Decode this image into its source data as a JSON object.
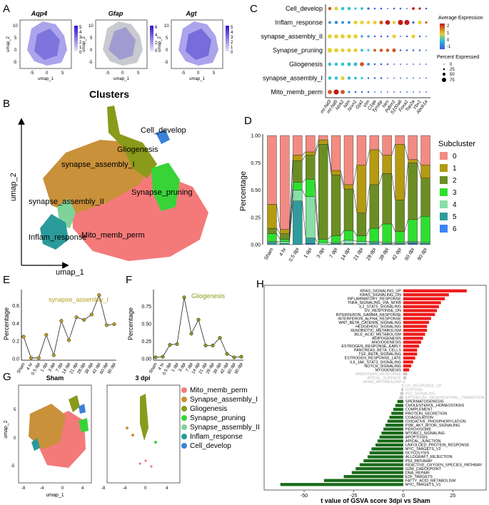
{
  "panel_letters": [
    "A",
    "B",
    "C",
    "D",
    "E",
    "F",
    "G",
    "H"
  ],
  "panelA": {
    "genes": [
      "Aqp4",
      "Gfap",
      "Agt"
    ],
    "xlabel": "umap_1",
    "ylabel": "umap_2",
    "xticks": [
      "-5",
      "0",
      "5"
    ],
    "yticks": [
      "10",
      "5",
      "0",
      "-5"
    ],
    "legends": [
      [
        "5",
        "4",
        "3",
        "2",
        "1",
        "0"
      ],
      [
        "6",
        "4",
        "2",
        "0"
      ],
      [
        "5",
        "4",
        "3",
        "2",
        "1",
        "0"
      ]
    ]
  },
  "panelB": {
    "title": "Clusters",
    "xlabel": "umap_1",
    "ylabel": "umap_2",
    "clusters": [
      {
        "name": "Cell_develop",
        "color": "#3b82d6"
      },
      {
        "name": "Gliogenesis",
        "color": "#8a9a1a"
      },
      {
        "name": "synapse_assembly_I",
        "color": "#c8913a"
      },
      {
        "name": "Synapse_pruning",
        "color": "#37d337"
      },
      {
        "name": "synapse_assembly_II",
        "color": "#7fd39a"
      },
      {
        "name": "Inflam_response",
        "color": "#2a9a9a"
      },
      {
        "name": "Mito_memb_perm",
        "color": "#f47a7a"
      }
    ]
  },
  "panelC": {
    "rows": [
      "Cell_develop",
      "Inflam_response",
      "synapse_assembly_II",
      "Synapse_pruning",
      "Gliogenesis",
      "synapse_assembly_I",
      "Mito_memb_perm"
    ],
    "genes": [
      "mt-Nd3",
      "mt-Nd5",
      "Ntrk2",
      "Ntm",
      "Nrxn1",
      "Gja1",
      "Vim",
      "C1qa",
      "Tyrobp",
      "Nes",
      "Pdlim1",
      "S100a6",
      "Foxa1",
      "Top2a",
      "Ybx1",
      "Abcb1a"
    ],
    "legend_title1": "Average Expression",
    "scale_labels": [
      "2",
      "1",
      "0",
      "-1"
    ],
    "legend_title2": "Percent Expressed",
    "size_labels": [
      "0",
      "25",
      "50",
      "75"
    ],
    "dots": [
      [
        [
          2,
          0.5
        ],
        [
          1,
          0.6
        ],
        [
          0,
          0.5
        ],
        [
          0,
          0.5
        ],
        [
          0,
          0.3
        ],
        [
          0,
          0.4
        ],
        [
          -1,
          0.3
        ],
        [
          -1,
          0.2
        ],
        [
          -1,
          0.2
        ],
        [
          -1,
          0.1
        ],
        [
          -1,
          0.2
        ],
        [
          -1,
          0.2
        ],
        [
          -1,
          0.1
        ],
        [
          2.5,
          0.4
        ],
        [
          2.5,
          0.3
        ],
        [
          -1,
          0.2
        ]
      ],
      [
        [
          -0.5,
          0.4
        ],
        [
          -0.5,
          0.5
        ],
        [
          -0.5,
          0.4
        ],
        [
          -0.5,
          0.4
        ],
        [
          1,
          0.6
        ],
        [
          1,
          0.6
        ],
        [
          1,
          0.5
        ],
        [
          1,
          0.6
        ],
        [
          2,
          0.6
        ],
        [
          2.5,
          0.8
        ],
        [
          1,
          0.5
        ],
        [
          2.5,
          0.9
        ],
        [
          2.5,
          0.9
        ],
        [
          -1,
          0.3
        ],
        [
          1,
          0.6
        ],
        [
          2,
          0.3
        ]
      ],
      [
        [
          1,
          0.7
        ],
        [
          1,
          0.7
        ],
        [
          1,
          0.7
        ],
        [
          1,
          0.7
        ],
        [
          1,
          0.7
        ],
        [
          -0.5,
          0.3
        ],
        [
          -0.5,
          0.3
        ],
        [
          -1,
          0.2
        ],
        [
          -1,
          0.2
        ],
        [
          -1,
          0.2
        ],
        [
          1,
          0.6
        ],
        [
          -1,
          0.1
        ],
        [
          -1,
          0.2
        ],
        [
          1,
          0.6
        ],
        [
          -1,
          0.2
        ],
        [
          -1,
          0.1
        ]
      ],
      [
        [
          1,
          0.8
        ],
        [
          1,
          0.7
        ],
        [
          1,
          0.6
        ],
        [
          1,
          0.6
        ],
        [
          1,
          0.6
        ],
        [
          0,
          0.4
        ],
        [
          0,
          0.3
        ],
        [
          2,
          0.4
        ],
        [
          2,
          0.5
        ],
        [
          2,
          0.5
        ],
        [
          2,
          0.6
        ],
        [
          -1,
          0.2
        ],
        [
          -1,
          0.2
        ],
        [
          -1,
          0.2
        ],
        [
          -1,
          0.2
        ],
        [
          -1,
          0.1
        ]
      ],
      [
        [
          0,
          0.5
        ],
        [
          0,
          0.5
        ],
        [
          0,
          0.5
        ],
        [
          0,
          0.6
        ],
        [
          0,
          0.6
        ],
        [
          2,
          0.7
        ],
        [
          -0.5,
          0.4
        ],
        [
          -1,
          0.2
        ],
        [
          -1,
          0.2
        ],
        [
          -1,
          0.2
        ],
        [
          -1,
          0.1
        ],
        [
          -1,
          0.1
        ],
        [
          -1,
          0.1
        ],
        [
          -1,
          0.1
        ],
        [
          -1,
          0.1
        ],
        [
          -1,
          0.1
        ]
      ],
      [
        [
          0,
          0.5
        ],
        [
          0,
          0.5
        ],
        [
          1,
          0.6
        ],
        [
          0,
          0.5
        ],
        [
          0,
          0.4
        ],
        [
          0,
          0.3
        ],
        [
          -1,
          0.2
        ],
        [
          -1,
          0.2
        ],
        [
          -1,
          0.2
        ],
        [
          -1,
          0.1
        ],
        [
          -1,
          0.1
        ],
        [
          -1,
          0.1
        ],
        [
          -1,
          0.1
        ],
        [
          -1,
          0.1
        ],
        [
          -1,
          0.1
        ],
        [
          -1,
          0.1
        ]
      ],
      [
        [
          2,
          0.7
        ],
        [
          2.5,
          0.9
        ],
        [
          2,
          0.7
        ],
        [
          -0.5,
          0.3
        ],
        [
          -1,
          0.2
        ],
        [
          -1,
          0.2
        ],
        [
          -1,
          0.2
        ],
        [
          -1,
          0.1
        ],
        [
          -1,
          0.1
        ],
        [
          -1,
          0.1
        ],
        [
          -1,
          0.1
        ],
        [
          -1,
          0.1
        ],
        [
          -1,
          0.1
        ],
        [
          -1,
          0.1
        ],
        [
          -1,
          0.1
        ],
        [
          -1,
          0.1
        ]
      ]
    ]
  },
  "chart_data": [
    {
      "panel": "D",
      "type": "bar",
      "stacked": true,
      "categories": [
        "Sham",
        "4 hr",
        "0.5 dpi",
        "1 dpi",
        "3 dpi",
        "7 dpi",
        "14 dpi",
        "21 dpi",
        "28 dpi",
        "38 dpi",
        "42 dpi",
        "60 dpi",
        "90 dpi"
      ],
      "ylabel": "Percentage",
      "yticks": [
        "0.00",
        "0.25",
        "0.50",
        "0.75",
        "1.00"
      ],
      "ylim": [
        0,
        1
      ],
      "legend_title": "Subcluster",
      "series": [
        {
          "name": "6",
          "color": "#3b82f6",
          "values": [
            0.0,
            0.0,
            0.0,
            0.01,
            0.0,
            0.0,
            0.0,
            0.0,
            0.0,
            0.0,
            0.0,
            0.01,
            0.0
          ]
        },
        {
          "name": "5",
          "color": "#2f9c9c",
          "values": [
            0.02,
            0.01,
            0.4,
            0.05,
            0.0,
            0.01,
            0.01,
            0.01,
            0.02,
            0.01,
            0.01,
            0.01,
            0.01
          ]
        },
        {
          "name": "4",
          "color": "#86dfa6",
          "values": [
            0.01,
            0.02,
            0.1,
            0.38,
            0.02,
            0.01,
            0.03,
            0.02,
            0.01,
            0.01,
            0.01,
            0.01,
            0.01
          ]
        },
        {
          "name": "3",
          "color": "#2ee02e",
          "values": [
            0.07,
            0.02,
            0.07,
            0.16,
            0.03,
            0.06,
            0.09,
            0.05,
            0.12,
            0.17,
            0.1,
            0.2,
            0.24
          ]
        },
        {
          "name": "2",
          "color": "#6b8e23",
          "values": [
            0.05,
            0.05,
            0.2,
            0.22,
            0.87,
            0.56,
            0.38,
            0.21,
            0.4,
            0.46,
            0.29,
            0.52,
            0.35
          ]
        },
        {
          "name": "1",
          "color": "#b59a12",
          "values": [
            0.22,
            0.04,
            0.05,
            0.03,
            0.04,
            0.04,
            0.04,
            0.44,
            0.32,
            0.17,
            0.51,
            0.03,
            0.12
          ]
        },
        {
          "name": "0",
          "color": "#f28b82",
          "values": [
            0.63,
            0.86,
            0.18,
            0.15,
            0.04,
            0.32,
            0.45,
            0.27,
            0.13,
            0.18,
            0.08,
            0.22,
            0.27
          ]
        }
      ]
    },
    {
      "panel": "E",
      "type": "line",
      "title": "synapse_assembly_I",
      "ylabel": "Percentage",
      "categories": [
        "Sham",
        "4 hr",
        "0.5 dpi",
        "1 dpi",
        "3 dpi",
        "7 dpi",
        "14 dpi",
        "21 dpi",
        "28 dpi",
        "38 dpi",
        "42 dpi",
        "60 dpi",
        "90 dpi"
      ],
      "values": [
        0.25,
        0.01,
        0.01,
        0.27,
        0.04,
        0.43,
        0.21,
        0.47,
        0.44,
        0.5,
        0.72,
        0.38,
        0.39
      ],
      "yticks": [
        "0.0",
        "0.2",
        "0.4",
        "0.6"
      ],
      "ylim": [
        0,
        0.75
      ]
    },
    {
      "panel": "F",
      "type": "line",
      "title": "Gliogenesis",
      "ylabel": "Percentage",
      "categories": [
        "Sham",
        "4 hr",
        "0.5 dpi",
        "1 dpi",
        "3 dpi",
        "7 dpi",
        "14 dpi",
        "21 dpi",
        "28 dpi",
        "38 dpi",
        "42 dpi",
        "60 dpi",
        "90 dpi"
      ],
      "values": [
        0.02,
        0.03,
        0.2,
        0.21,
        0.88,
        0.36,
        0.56,
        0.19,
        0.19,
        0.3,
        0.07,
        0.02,
        0.03
      ],
      "yticks": [
        "0.00",
        "0.25",
        "0.50",
        "0.75"
      ],
      "ylim": [
        0,
        0.95
      ]
    },
    {
      "panel": "H",
      "type": "bar",
      "orientation": "horizontal",
      "xlabel": "t value of GSVA score  3dpi vs Sham",
      "xticks": [
        "-50",
        "-25",
        "0",
        "25"
      ],
      "xlim": [
        -68,
        40
      ],
      "categories": [
        "KRAS_SIGNALING_UP",
        "KRAS_SIGNALING_DN",
        "INFLAMMATORY_RESPONSE",
        "TNFA_SIGNALING_VIA_NFKB",
        "IL2_STAT5_SIGNALING",
        "UV_RESPONSE_DN",
        "INTERFERON_GAMMA_RESPONSE",
        "INTERFERON_ALPHA_RESPONSE",
        "WNT_BETA_CATENIN_SIGNALING",
        "HEDGEHOG_SIGNALING",
        "XENOBIOTIC_METABOLISM",
        "BILE_ACID_METABOLISM",
        "ADIPOGENESIS",
        "ANGIOGENESIS",
        "ESTROGEN_RESPONSE_EARLY",
        "PANCREAS_BETA_CELLS",
        "TGF_BETA_SIGNALING",
        "ESTROGEN_RESPONSE_LATE",
        "IL6_JAK_STAT3_SIGNALING",
        "NOTCH_SIGNALING",
        "MYOGENESIS",
        "ANDROGEN_RESPONSE",
        "APICAL_SURFACE",
        "HEME_METABOLISM",
        "UV_RESPONSE_UP",
        "HYPOXIA",
        "P53_SIGNALING",
        "EPITHELIAL_MESENCHYMAL_TRANSITION",
        "SPERMATOGENESIS",
        "CHOLESTEROL_HOMEOSTASIS",
        "COMPLEMENT",
        "PROTEIN_SECRETION",
        "COAGULATION",
        "OXIDATIVE_PHOSPHORYLATION",
        "PI3K_AKT_MTOR_SIGNALING",
        "PEROXISOME",
        "MTORC1_SIGNALING",
        "APOPTOSIS",
        "APICAL_JUNCTION",
        "UNFOLDED_PROTEIN_RESPONSE",
        "MYC_TARGETS_V2",
        "GLYCOLYSIS",
        "ALLOGRAFT_REJECTION",
        "P53_PATHWAY",
        "REACTIVE_OXYGEN_SPECIES_PATHWAY",
        "G2M_CHECKPOINT",
        "DNA_REPAIR",
        "E2F_TARGETS",
        "FATTY_ACID_METABOLISM",
        "MYC_TARGETS_V1"
      ],
      "values": [
        32,
        23,
        21,
        19,
        18,
        17,
        16,
        14,
        13,
        12,
        12,
        11,
        10,
        9,
        8,
        7,
        7,
        6,
        5,
        4,
        3,
        2,
        1.5,
        0.5,
        -0.5,
        -1,
        -1.5,
        -2,
        -3,
        -4,
        -5,
        -6,
        -7,
        -8,
        -9,
        -10,
        -11,
        -12,
        -13,
        -14,
        -16,
        -17,
        -18,
        -20,
        -22,
        -24,
        -26,
        -30,
        -40,
        -62
      ],
      "colors": {
        "up": "#ee1c1c",
        "down": "#1a6b1a",
        "ns": "#c8c8c8"
      }
    }
  ],
  "panelG": {
    "titles": [
      "Sham",
      "3 dpi"
    ],
    "xlabel": "umap_1",
    "ylabel": "umap_2",
    "xticks_left": [
      "-8",
      "-4",
      "0",
      "4"
    ],
    "xticks_right": [
      "-8",
      "-4",
      "0",
      "4"
    ],
    "yticks": [
      "5",
      "0",
      "-5"
    ],
    "legend": [
      {
        "name": "Mito_memb_perm",
        "color": "#f47a7a"
      },
      {
        "name": "Synapse_assembly_I",
        "color": "#c8913a"
      },
      {
        "name": "Gliogenesis",
        "color": "#8a9a1a"
      },
      {
        "name": "Synapse_pruning",
        "color": "#37d337"
      },
      {
        "name": "Synapse_assembly_II",
        "color": "#7fd39a"
      },
      {
        "name": "Inflam_response",
        "color": "#2a9a9a"
      },
      {
        "name": "Cell_develop",
        "color": "#3b82d6"
      }
    ]
  }
}
